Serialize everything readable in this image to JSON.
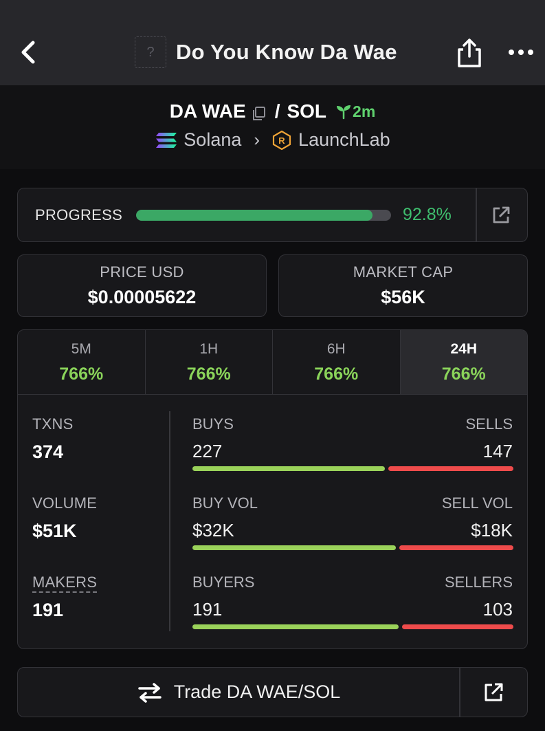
{
  "header": {
    "title": "Do You Know Da Wae",
    "token_placeholder": "?",
    "icons": {
      "back": "chevron-left-icon",
      "share": "share-icon",
      "more": "more-horizontal-icon"
    }
  },
  "pair": {
    "base": "DA WAE",
    "separator": "/",
    "quote": "SOL",
    "age": "2m",
    "chain": "Solana",
    "dex": "LaunchLab",
    "icons": {
      "copy": "copy-icon",
      "age": "sprout-icon",
      "chain": "solana-logo-icon",
      "dex": "launchlab-logo-icon"
    }
  },
  "progress": {
    "label": "PROGRESS",
    "value_text": "92.8%",
    "value": 0.928
  },
  "price": {
    "label": "PRICE USD",
    "value": "$0.00005622"
  },
  "market_cap": {
    "label": "MARKET CAP",
    "value": "$56K"
  },
  "timeframes": [
    {
      "label": "5M",
      "change": "766%",
      "active": false
    },
    {
      "label": "1H",
      "change": "766%",
      "active": false
    },
    {
      "label": "6H",
      "change": "766%",
      "active": false
    },
    {
      "label": "24H",
      "change": "766%",
      "active": true
    }
  ],
  "metrics": {
    "txns": {
      "label": "TXNS",
      "value": "374"
    },
    "volume": {
      "label": "VOLUME",
      "value": "$51K"
    },
    "makers": {
      "label": "MAKERS",
      "value": "191"
    },
    "buys": {
      "label": "BUYS",
      "value": "227",
      "ratio": 0.607
    },
    "sells": {
      "label": "SELLS",
      "value": "147"
    },
    "buy_vol": {
      "label": "BUY VOL",
      "value": "$32K",
      "ratio": 0.64
    },
    "sell_vol": {
      "label": "SELL VOL",
      "value": "$18K"
    },
    "buyers": {
      "label": "BUYERS",
      "value": "191",
      "ratio": 0.65
    },
    "sellers": {
      "label": "SELLERS",
      "value": "103"
    }
  },
  "trade": {
    "label": "Trade DA WAE/SOL"
  },
  "colors": {
    "green": "#3ba865",
    "lime": "#9ad25a",
    "red": "#ee4b4b",
    "bg": "#0d0d0f"
  }
}
